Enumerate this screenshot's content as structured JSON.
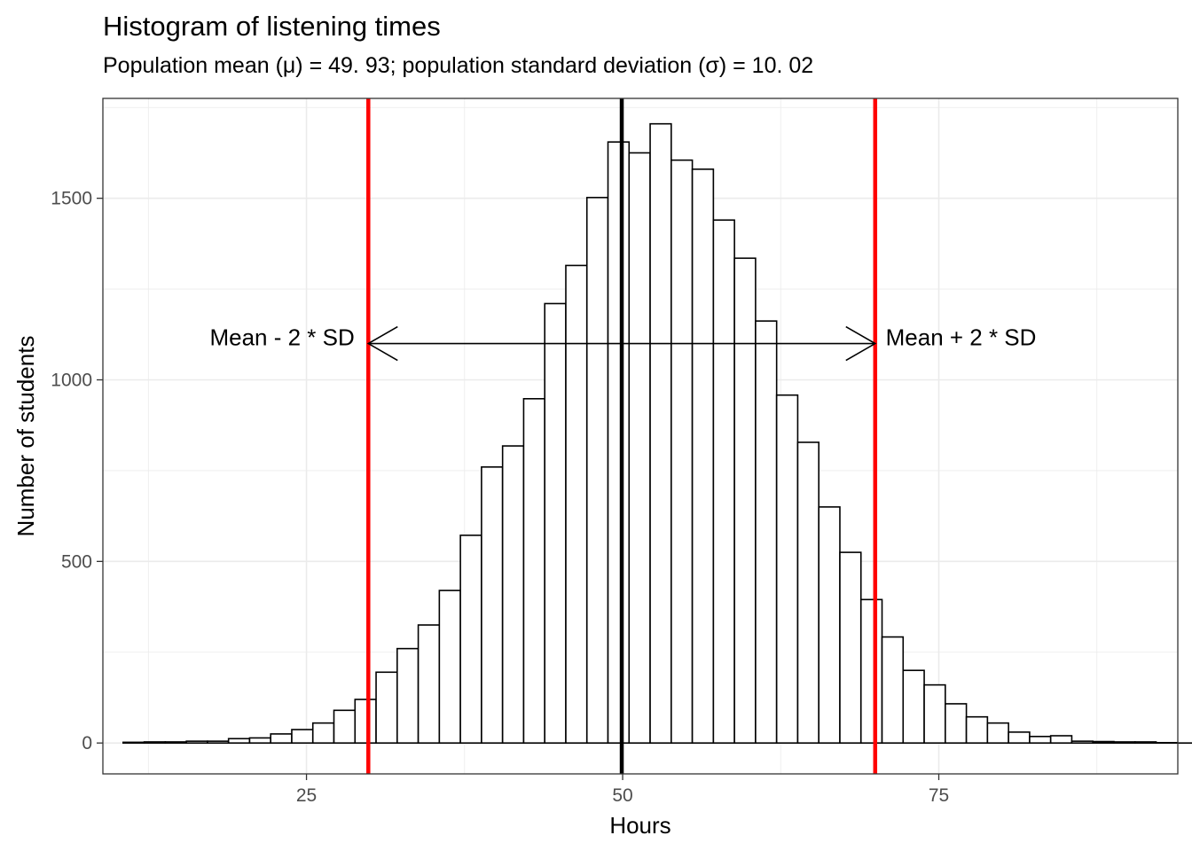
{
  "chart_data": {
    "type": "bar",
    "title": "Histogram of listening times",
    "subtitle": "Population mean (μ) = 49. 93; population standard deviation (σ) = 10. 02",
    "xlabel": "Hours",
    "ylabel": "Number of students",
    "xlim": [
      8.9,
      93.9
    ],
    "ylim": [
      -85,
      1775
    ],
    "x_ticks": [
      25,
      50,
      75
    ],
    "y_ticks": [
      0,
      500,
      1000,
      1500
    ],
    "grid": true,
    "bin_start": 10.5,
    "bin_width": 1.667,
    "values": [
      2,
      3,
      3,
      5,
      5,
      12,
      14,
      25,
      37,
      55,
      90,
      120,
      195,
      260,
      325,
      420,
      572,
      760,
      818,
      948,
      1210,
      1315,
      1502,
      1655,
      1625,
      1705,
      1605,
      1580,
      1440,
      1335,
      1162,
      958,
      828,
      650,
      525,
      395,
      292,
      200,
      160,
      108,
      72,
      55,
      30,
      18,
      20,
      5,
      4,
      3,
      3,
      1,
      0,
      2
    ],
    "vlines": [
      {
        "x": 49.93,
        "color": "#000000"
      },
      {
        "x": 29.89,
        "color": "#ff0000"
      },
      {
        "x": 69.97,
        "color": "#ff0000"
      }
    ],
    "arrow": {
      "x_from": 29.89,
      "x_to": 69.97,
      "y": 1100
    },
    "annotations": [
      {
        "text": "Mean - 2 * SD",
        "x": 28.8,
        "y": 1095,
        "anchor": "end"
      },
      {
        "text": "Mean + 2 * SD",
        "x": 70.8,
        "y": 1095,
        "anchor": "start"
      }
    ],
    "colors": {
      "bar_fill": "#ffffff",
      "bar_stroke": "#000000",
      "grid": "#ebebeb",
      "panel_border": "#333333",
      "tick_label": "#4d4d4d"
    }
  }
}
